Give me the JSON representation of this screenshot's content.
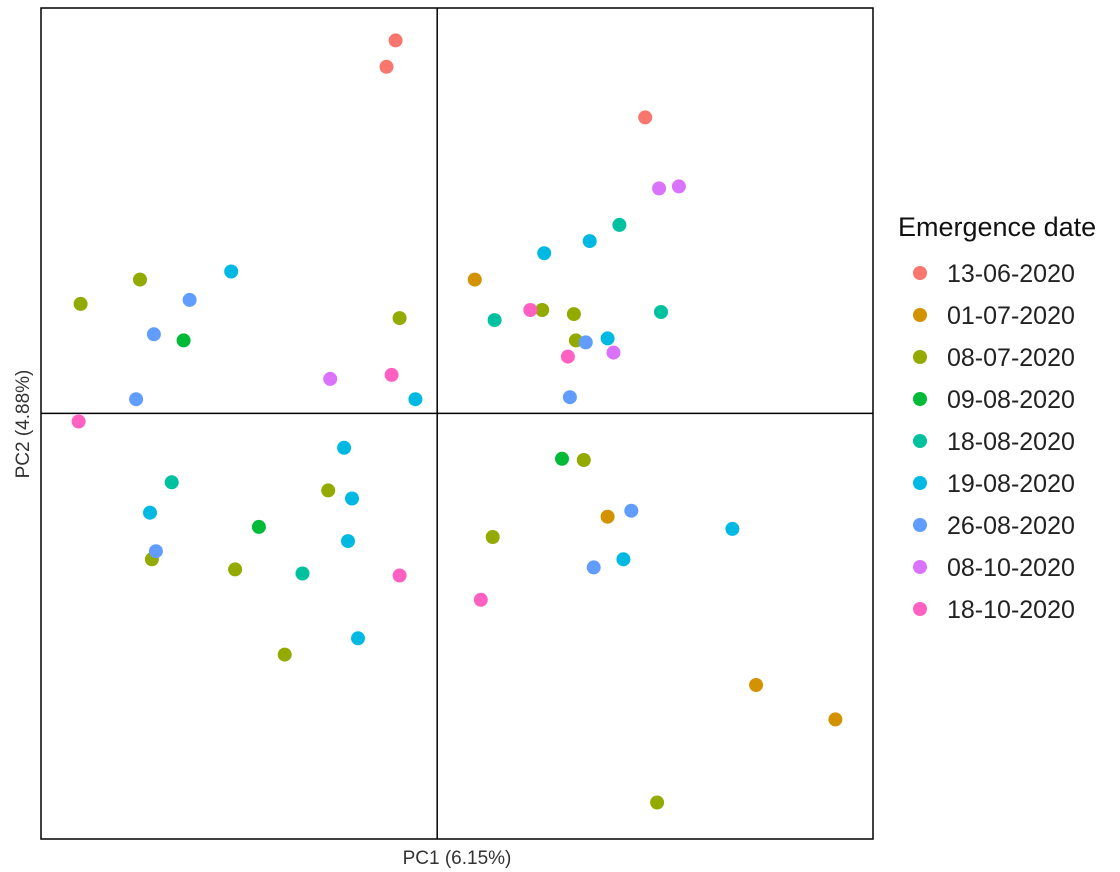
{
  "chart_data": {
    "type": "scatter",
    "xlabel": "PC1 (6.15%)",
    "ylabel": "PC2 (4.88%)",
    "xlim": [
      -10,
      11
    ],
    "ylim": [
      -10.5,
      10
    ],
    "grid": false,
    "reference_lines": {
      "x": 0,
      "y": 0
    },
    "legend": {
      "title": "Emergence date",
      "position": "right"
    },
    "series": [
      {
        "name": "13-06-2020",
        "color": "#F8766D",
        "points": [
          [
            -1.05,
            9.2
          ],
          [
            -1.28,
            8.55
          ],
          [
            5.25,
            7.3
          ]
        ]
      },
      {
        "name": "01-07-2020",
        "color": "#D39200",
        "points": [
          [
            0.95,
            3.3
          ],
          [
            4.3,
            -2.55
          ],
          [
            8.05,
            -6.7
          ],
          [
            10.05,
            -7.55
          ]
        ]
      },
      {
        "name": "08-07-2020",
        "color": "#93AA00",
        "points": [
          [
            -9.0,
            2.7
          ],
          [
            -7.5,
            3.3
          ],
          [
            -0.95,
            2.35
          ],
          [
            2.65,
            2.55
          ],
          [
            3.45,
            2.45
          ],
          [
            3.5,
            1.8
          ],
          [
            -7.2,
            -3.6
          ],
          [
            -5.1,
            -3.85
          ],
          [
            -2.75,
            -1.9
          ],
          [
            3.7,
            -1.15
          ],
          [
            1.4,
            -3.05
          ],
          [
            -3.85,
            -5.95
          ],
          [
            5.55,
            -9.6
          ]
        ]
      },
      {
        "name": "09-08-2020",
        "color": "#00BA38",
        "points": [
          [
            -6.4,
            1.8
          ],
          [
            -4.5,
            -2.8
          ],
          [
            3.15,
            -1.12
          ]
        ]
      },
      {
        "name": "18-08-2020",
        "color": "#00C19F",
        "points": [
          [
            -6.7,
            -1.7
          ],
          [
            -3.4,
            -3.95
          ],
          [
            1.45,
            2.3
          ],
          [
            4.6,
            4.65
          ],
          [
            5.65,
            2.5
          ]
        ]
      },
      {
        "name": "19-08-2020",
        "color": "#00B9E3",
        "points": [
          [
            -5.2,
            3.5
          ],
          [
            -2.35,
            -0.85
          ],
          [
            -2.15,
            -2.1
          ],
          [
            -7.25,
            -2.45
          ],
          [
            -2.25,
            -3.15
          ],
          [
            -2.0,
            -5.55
          ],
          [
            -0.55,
            0.35
          ],
          [
            2.7,
            3.95
          ],
          [
            3.85,
            4.25
          ],
          [
            4.3,
            1.85
          ],
          [
            7.45,
            -2.85
          ],
          [
            4.7,
            -3.6
          ]
        ]
      },
      {
        "name": "26-08-2020",
        "color": "#619CFF",
        "points": [
          [
            -6.25,
            2.8
          ],
          [
            -7.15,
            1.95
          ],
          [
            -7.6,
            0.35
          ],
          [
            -7.1,
            -3.4
          ],
          [
            3.35,
            0.4
          ],
          [
            3.75,
            1.75
          ],
          [
            4.9,
            -2.4
          ],
          [
            3.95,
            -3.8
          ]
        ]
      },
      {
        "name": "08-10-2020",
        "color": "#DB72FB",
        "points": [
          [
            -2.7,
            0.85
          ],
          [
            4.45,
            1.5
          ],
          [
            5.6,
            5.55
          ],
          [
            6.1,
            5.6
          ]
        ]
      },
      {
        "name": "18-10-2020",
        "color": "#FF61C3",
        "points": [
          [
            -9.05,
            -0.2
          ],
          [
            -1.15,
            0.95
          ],
          [
            -0.95,
            -4.0
          ],
          [
            2.35,
            2.55
          ],
          [
            3.3,
            1.4
          ],
          [
            1.1,
            -4.6
          ]
        ]
      }
    ]
  }
}
